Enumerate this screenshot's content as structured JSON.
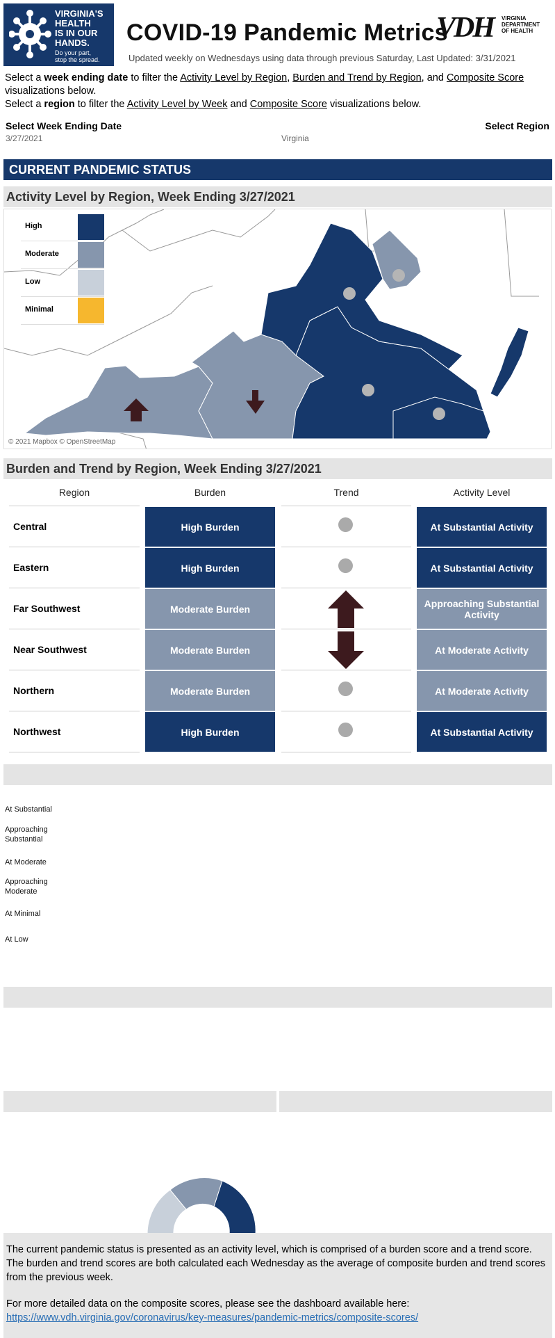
{
  "logo": {
    "headline": "VIRGINIA'S HEALTH IS IN OUR HANDS.",
    "line1": "VIRGINIA'S",
    "line2": "HEALTH",
    "line3": "IS IN OUR",
    "line4": "HANDS.",
    "sub1": "Do your part,",
    "sub2": "stop the spread."
  },
  "header": {
    "title": "COVID-19 Pandemic Metrics",
    "vdh": "VDH",
    "vdh_sub1": "VIRGINIA",
    "vdh_sub2": "DEPARTMENT",
    "vdh_sub3": "OF HEALTH",
    "updated": "Updated weekly on Wednesdays using data through previous Saturday, Last Updated: 3/31/2021"
  },
  "intro": {
    "line1_pre": "Select a ",
    "line1_bold": "week ending date",
    "line1_mid": " to filter the ",
    "link1": "Activity Level by Region",
    "sep1": ", ",
    "link2": "Burden and Trend by Region",
    "sep2": ", and ",
    "link3": "Composite Score",
    "line1_end": " visualizations below.",
    "line2_pre": "Select a ",
    "line2_bold": "region",
    "line2_mid": " to filter the ",
    "link4": "Activity Level by Week",
    "sep3": " and ",
    "link5": "Composite Score",
    "line2_end": " visualizations below."
  },
  "filters": {
    "week_label": "Select Week Ending Date",
    "week_value": "3/27/2021",
    "region_value": "Virginia",
    "region_label": "Select Region"
  },
  "status_bar": "CURRENT PANDEMIC STATUS",
  "map_section": {
    "title": "Activity Level by Region, Week Ending 3/27/2021",
    "legend": [
      {
        "label": "High",
        "color": "#16386b"
      },
      {
        "label": "Moderate",
        "color": "#8696ad"
      },
      {
        "label": "Low",
        "color": "#c8d0da"
      },
      {
        "label": "Minimal",
        "color": "#f6b72e"
      }
    ],
    "credit": "© 2021 Mapbox © OpenStreetMap"
  },
  "burden_section": {
    "title": "Burden and Trend by Region, Week Ending 3/27/2021",
    "headers": {
      "region": "Region",
      "burden": "Burden",
      "trend": "Trend",
      "activity": "Activity Level"
    },
    "rows": [
      {
        "region": "Central",
        "burden": "High Burden",
        "burden_level": "high",
        "trend": "flat",
        "activity": "At Substantial Activity",
        "activity_level": "high"
      },
      {
        "region": "Eastern",
        "burden": "High Burden",
        "burden_level": "high",
        "trend": "flat",
        "activity": "At Substantial Activity",
        "activity_level": "high"
      },
      {
        "region": "Far Southwest",
        "burden": "Moderate Burden",
        "burden_level": "moderate",
        "trend": "up",
        "activity": "Approaching Substantial Activity",
        "activity_level": "moderate"
      },
      {
        "region": "Near Southwest",
        "burden": "Moderate Burden",
        "burden_level": "moderate",
        "trend": "down",
        "activity": "At Moderate Activity",
        "activity_level": "moderate"
      },
      {
        "region": "Northern",
        "burden": "Moderate Burden",
        "burden_level": "moderate",
        "trend": "flat",
        "activity": "At Moderate Activity",
        "activity_level": "moderate"
      },
      {
        "region": "Northwest",
        "burden": "High Burden",
        "burden_level": "high",
        "trend": "flat",
        "activity": "At Substantial Activity",
        "activity_level": "high"
      }
    ]
  },
  "activity_axis": {
    "levels": [
      "At Substantial",
      "Approaching Substantial",
      "At Moderate",
      "Approaching Moderate",
      "At Minimal",
      "At Low"
    ]
  },
  "colors": {
    "high": "#16386b",
    "moderate": "#8696ad",
    "low": "#c8d0da",
    "minimal": "#f6b72e",
    "arrow": "#3d1a1e",
    "flat_dot": "#aaaaaa"
  },
  "footer": {
    "para1": "The current pandemic status is presented as an activity level, which is comprised of a burden score and a trend score. The burden and trend scores are both calculated each Wednesday as the average of composite burden and trend scores from the previous week.",
    "para2": "For more detailed data on the composite scores, please see the dashboard available here:",
    "link": "https://www.vdh.virginia.gov/coronavirus/key-measures/pandemic-metrics/composite-scores/"
  }
}
